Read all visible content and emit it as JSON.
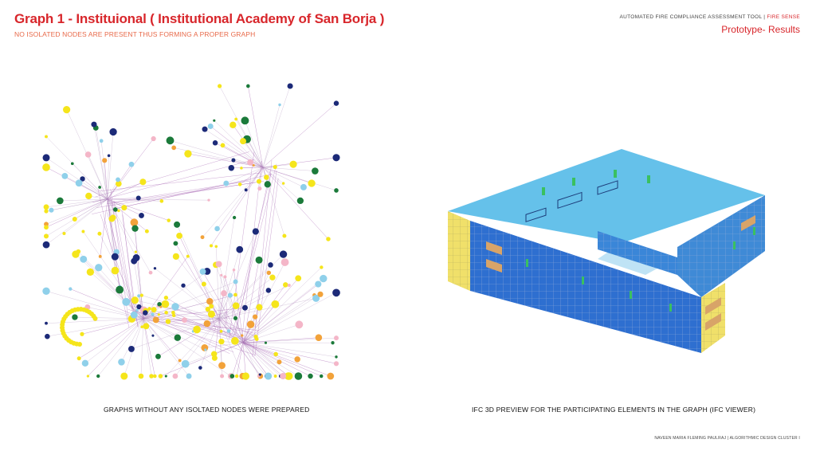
{
  "header": {
    "title": "Graph 1 - Instituional ( Institutional Academy of San Borja )",
    "subtitle": "NO ISOLATED NODES ARE PRESENT THUS FORMING A PROPER GRAPH",
    "tool_name": "AUTOMATED FIRE COMPLIANCE ASSESSMENT TOOL | ",
    "tool_brand": "FIRE SENSE",
    "section": "Prototype- Results"
  },
  "captions": {
    "left": "GRAPHS WITHOUT ANY ISOLTAED NODES WERE PREPARED",
    "right": "IFC 3D PREVIEW FOR THE PARTICIPATING ELEMENTS IN THE GRAPH (IFC VIEWER)"
  },
  "footer": "NAVEEN MARIA FLEMING PAULRAJ  |  ALGORITHMIC DESIGN CLUSTER I",
  "colors": {
    "title": "#d8262b",
    "subtitle": "#e86a4a",
    "node_yellow": "#f5e51b",
    "node_green": "#1b7a3a",
    "node_orange": "#f2a23a",
    "node_navy": "#1c2a78",
    "node_pink": "#f4b6c8",
    "node_lightblue": "#8fd0ea",
    "edge_purple": "#9a4fa8",
    "model_blue": "#2e6fd0",
    "model_cyan": "#38c8e8",
    "model_yellow": "#f0e06a"
  }
}
